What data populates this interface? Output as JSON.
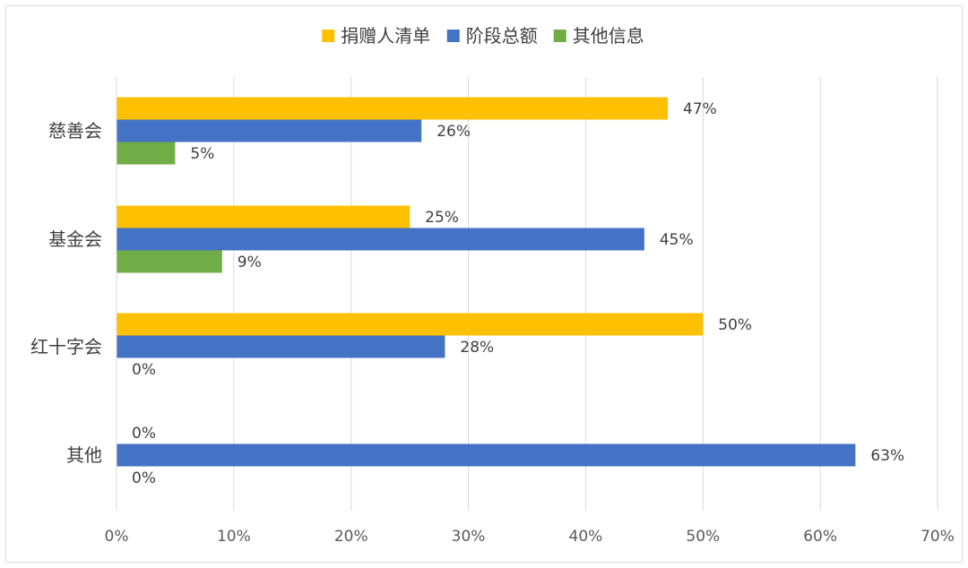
{
  "chart_data": {
    "type": "bar",
    "orientation": "horizontal",
    "categories": [
      "慈善会",
      "基金会",
      "红十字会",
      "其他"
    ],
    "series": [
      {
        "name": "捐赠人清单",
        "color": "#FFC000",
        "values": [
          47,
          25,
          50,
          0
        ]
      },
      {
        "name": "阶段总额",
        "color": "#4472C4",
        "values": [
          26,
          45,
          28,
          63
        ]
      },
      {
        "name": "其他信息",
        "color": "#70AD47",
        "values": [
          5,
          9,
          0,
          0
        ]
      }
    ],
    "xlim": [
      0,
      70
    ],
    "xticks": [
      0,
      10,
      20,
      30,
      40,
      50,
      60,
      70
    ],
    "value_suffix": "%",
    "grid": "vertical",
    "legend_position": "top-center",
    "title": "",
    "xlabel": "",
    "ylabel": ""
  }
}
